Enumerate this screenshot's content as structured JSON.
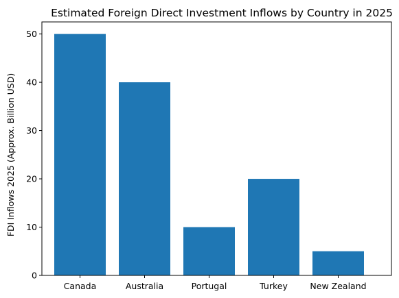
{
  "chart_data": {
    "type": "bar",
    "title": "Estimated Foreign Direct Investment Inflows by Country in 2025",
    "xlabel": "",
    "ylabel": "FDI Inflows 2025 (Approx. Billion USD)",
    "categories": [
      "Canada",
      "Australia",
      "Portugal",
      "Turkey",
      "New Zealand"
    ],
    "values": [
      50,
      40,
      10,
      20,
      5
    ],
    "yticks": [
      0,
      10,
      20,
      30,
      40,
      50
    ],
    "ylim": [
      0,
      52.5
    ],
    "grid": false,
    "bar_color": "#1f77b4"
  }
}
